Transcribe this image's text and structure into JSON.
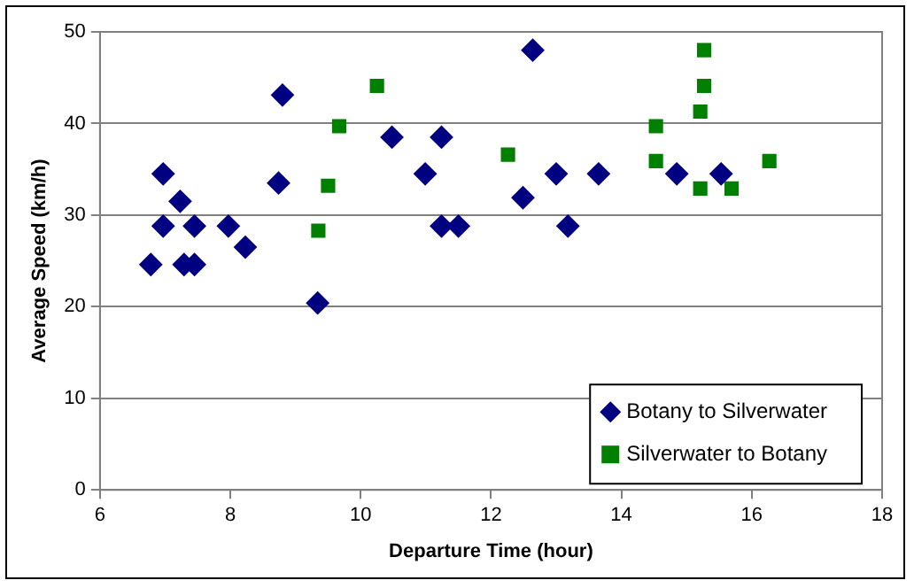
{
  "chart_data": {
    "type": "scatter",
    "xlabel": "Departure Time (hour)",
    "ylabel": "Average Speed (km/h)",
    "xlim": [
      6,
      18
    ],
    "xticks": [
      6,
      8,
      10,
      12,
      14,
      16,
      18
    ],
    "ylim": [
      0,
      50
    ],
    "yticks": [
      0,
      10,
      20,
      30,
      40,
      50
    ],
    "grid": "y",
    "legend": "bottom right",
    "series": [
      {
        "name": "Botany to Silverwater",
        "color": "#000080",
        "marker": "diamond",
        "x": [
          6.78,
          6.97,
          6.97,
          7.23,
          7.29,
          7.45,
          7.45,
          7.97,
          8.23,
          8.74,
          8.8,
          9.34,
          10.48,
          10.99,
          11.24,
          11.24,
          11.5,
          12.49,
          12.64,
          13.0,
          13.18,
          13.65,
          14.85,
          15.53
        ],
        "values": [
          24.6,
          34.5,
          28.8,
          31.5,
          24.6,
          28.8,
          24.6,
          28.8,
          26.5,
          33.5,
          43.1,
          20.4,
          38.5,
          34.5,
          38.5,
          28.8,
          28.8,
          31.9,
          48.0,
          34.5,
          28.8,
          34.5,
          34.5,
          34.5
        ]
      },
      {
        "name": "Silverwater to Botany",
        "color": "#008000",
        "marker": "square",
        "x": [
          9.35,
          9.5,
          9.67,
          10.25,
          12.26,
          14.53,
          14.53,
          15.21,
          15.27,
          15.27,
          15.21,
          15.69,
          16.27
        ],
        "values": [
          28.3,
          33.2,
          39.7,
          44.1,
          36.6,
          39.7,
          35.9,
          41.3,
          44.1,
          48.0,
          32.9,
          32.9,
          35.9
        ]
      }
    ]
  }
}
